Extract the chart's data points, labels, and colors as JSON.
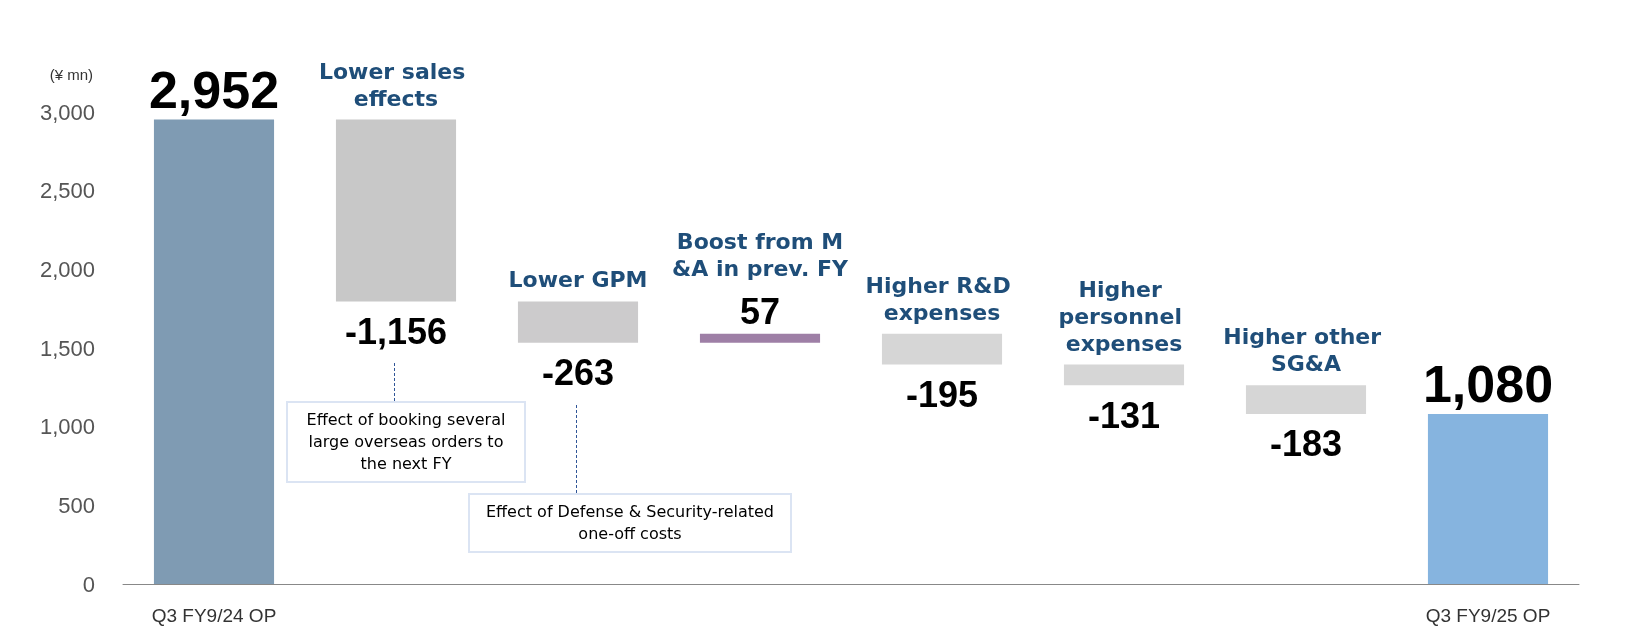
{
  "chart_data": {
    "type": "bar",
    "ylabel": "(¥ mn)",
    "categories": [
      "Q3 FY9/24 OP",
      "Lower sales effects",
      "Lower GPM",
      "Boost from M&A in prev. FY",
      "Higher R&D expenses",
      "Higher personnel expenses",
      "Higher other SG&A",
      "Q3 FY9/25 OP"
    ],
    "values": [
      2952,
      -1156,
      -263,
      57,
      -195,
      -131,
      -183,
      1080
    ],
    "base": [
      0,
      2952,
      1796,
      1533,
      1590,
      1395,
      1264,
      0
    ],
    "colors": [
      "#7f9bb3",
      "#c8c8c8",
      "#cccbcc",
      "#9e7fa6",
      "#d6d6d6",
      "#d6d6d6",
      "#d6d6d6",
      "#86b4df"
    ],
    "value_labels": [
      "2,952",
      "-1,156",
      "-263",
      "57",
      "-195",
      "-131",
      "-183",
      "1,080"
    ],
    "ylim": [
      0,
      3000
    ],
    "yticks": [
      0,
      500,
      {
        "value": 1000,
        "label": "1,000"
      },
      {
        "value": 1500,
        "label": "1,500"
      },
      {
        "value": 2000,
        "label": "2,000"
      },
      {
        "value": 2500,
        "label": "2,500"
      },
      {
        "value": 3000,
        "label": "3,000"
      }
    ],
    "grid": false,
    "annotations": [
      "Effect of booking several large overseas orders to the next FY",
      "Effect of Defense & Security-related one-off costs"
    ]
  }
}
